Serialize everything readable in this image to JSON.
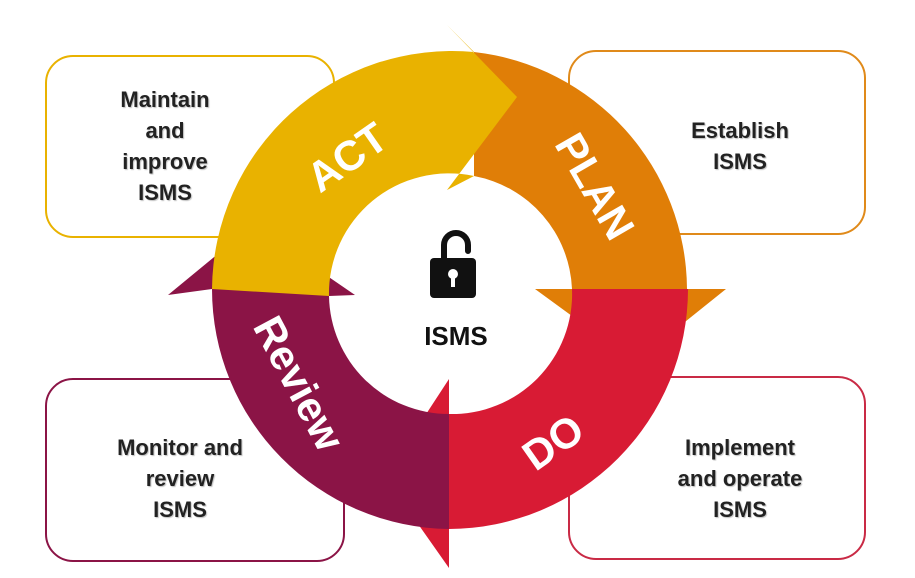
{
  "colors": {
    "act": "#E9B200",
    "plan": "#E07E07",
    "do": "#D81B34",
    "review": "#8B1446",
    "act_box_border": "#E9B200",
    "plan_box_border": "#E08A1A",
    "do_box_border": "#C92A45",
    "review_box_border": "#8B1446"
  },
  "phases": {
    "act": "ACT",
    "plan": "PLAN",
    "do": "DO",
    "review": "Review"
  },
  "center": {
    "icon": "unlocked-padlock-icon",
    "label": "ISMS"
  },
  "boxes": {
    "act": [
      "Maintain",
      "and",
      "improve",
      "ISMS"
    ],
    "plan": [
      "Establish",
      "ISMS"
    ],
    "do": [
      "Implement",
      "and operate",
      "ISMS"
    ],
    "review": [
      "Monitor and",
      "review",
      "ISMS"
    ]
  }
}
